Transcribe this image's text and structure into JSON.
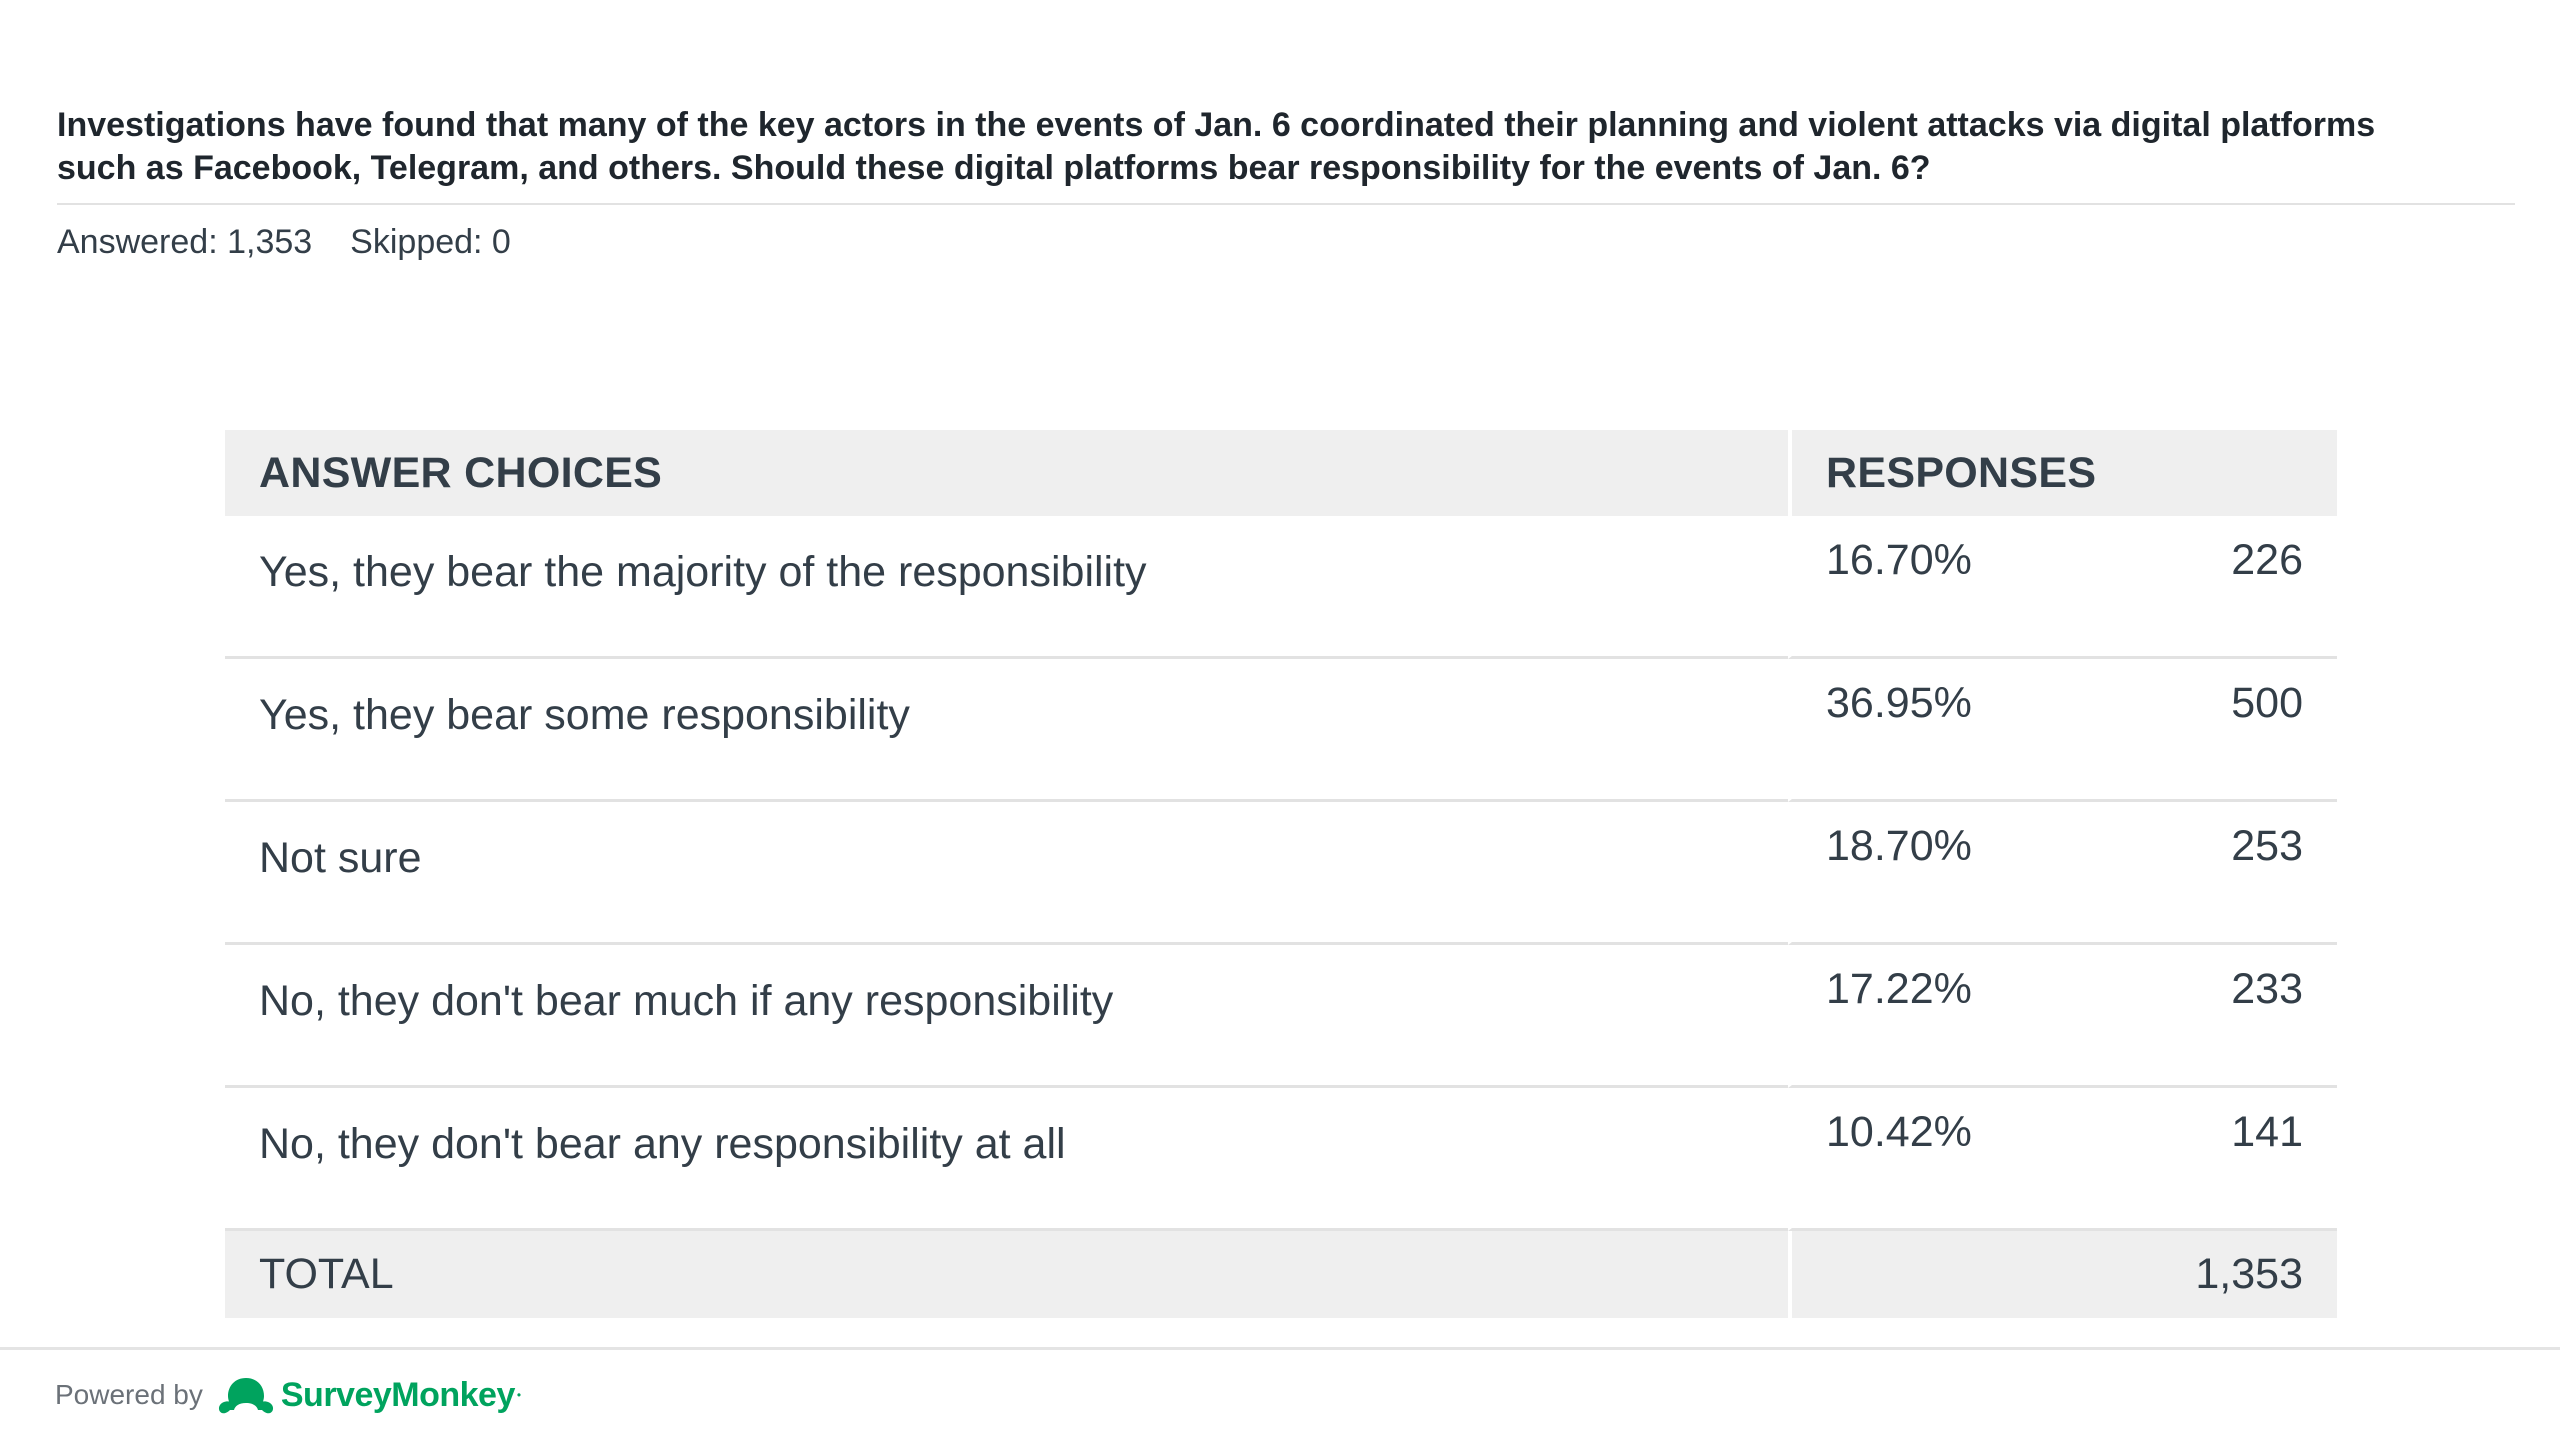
{
  "question": {
    "text": "Investigations have found that many of the key actors in the events of Jan. 6 coordinated their planning and violent attacks via digital platforms such as Facebook, Telegram, and others. Should these digital platforms bear responsibility for the events of Jan. 6?"
  },
  "stats": {
    "answered": "Answered: 1,353",
    "skipped": "Skipped: 0"
  },
  "table": {
    "headers": {
      "choices": "ANSWER CHOICES",
      "responses": "RESPONSES"
    },
    "rows": [
      {
        "choice": "Yes, they bear the majority of the responsibility",
        "percent": "16.70%",
        "count": "226"
      },
      {
        "choice": "Yes, they bear some responsibility",
        "percent": "36.95%",
        "count": "500"
      },
      {
        "choice": "Not sure",
        "percent": "18.70%",
        "count": "253"
      },
      {
        "choice": "No, they don't bear much if any responsibility",
        "percent": "17.22%",
        "count": "233"
      },
      {
        "choice": "No, they don't bear any responsibility at all",
        "percent": "10.42%",
        "count": "141"
      }
    ],
    "total": {
      "label": "TOTAL",
      "count": "1,353"
    }
  },
  "footer": {
    "powered_by": "Powered by",
    "brand": "SurveyMonkey",
    "brand_icon": "surveymonkey-logo-icon",
    "brand_color": "#00a35e"
  }
}
